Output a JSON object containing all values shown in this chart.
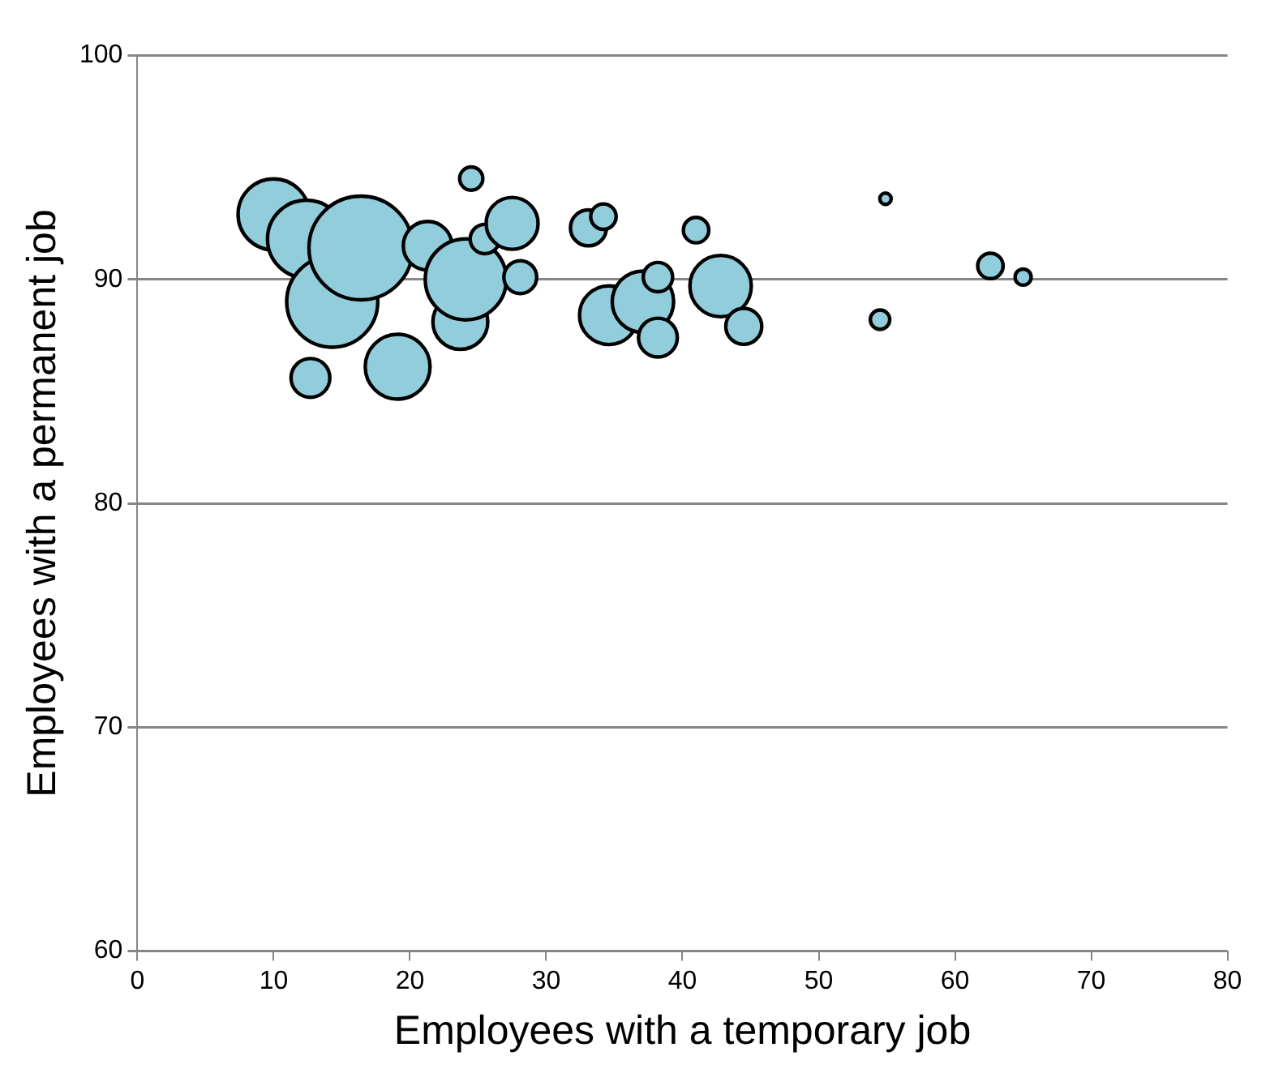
{
  "chart_data": {
    "type": "bubble",
    "xlabel": "Employees with a temporary job",
    "ylabel": "Employees with a permanent job",
    "x": [
      10.0,
      12.4,
      14.3,
      16.4,
      12.7,
      19.1,
      21.3,
      23.7,
      24.1,
      24.5,
      25.5,
      27.5,
      28.1,
      33.1,
      34.2,
      34.6,
      37.1,
      38.2,
      38.2,
      41.0,
      42.8,
      44.5,
      54.9,
      54.5,
      62.6,
      65.0
    ],
    "values": [
      92.9,
      91.8,
      89.0,
      91.4,
      85.6,
      86.1,
      91.5,
      88.1,
      90.0,
      94.5,
      91.8,
      92.5,
      90.1,
      92.3,
      92.8,
      88.4,
      89.0,
      90.1,
      87.4,
      92.2,
      89.7,
      87.9,
      93.6,
      88.2,
      90.6,
      90.1
    ],
    "sizes": [
      0.47,
      0.56,
      0.77,
      1,
      0.14,
      0.39,
      0.22,
      0.28,
      0.61,
      0.05,
      0.08,
      0.25,
      0.1,
      0.12,
      0.06,
      0.32,
      0.35,
      0.08,
      0.14,
      0.06,
      0.35,
      0.12,
      0.012,
      0.035,
      0.06,
      0.024
    ],
    "color": "#92cddc",
    "xlim": [
      0,
      80
    ],
    "xticks": [
      0,
      10,
      20,
      30,
      40,
      50,
      60,
      70,
      80
    ],
    "ylim": [
      60,
      100
    ],
    "yticks": [
      60,
      70,
      80,
      90,
      100
    ],
    "grid": "y",
    "legend": false
  }
}
